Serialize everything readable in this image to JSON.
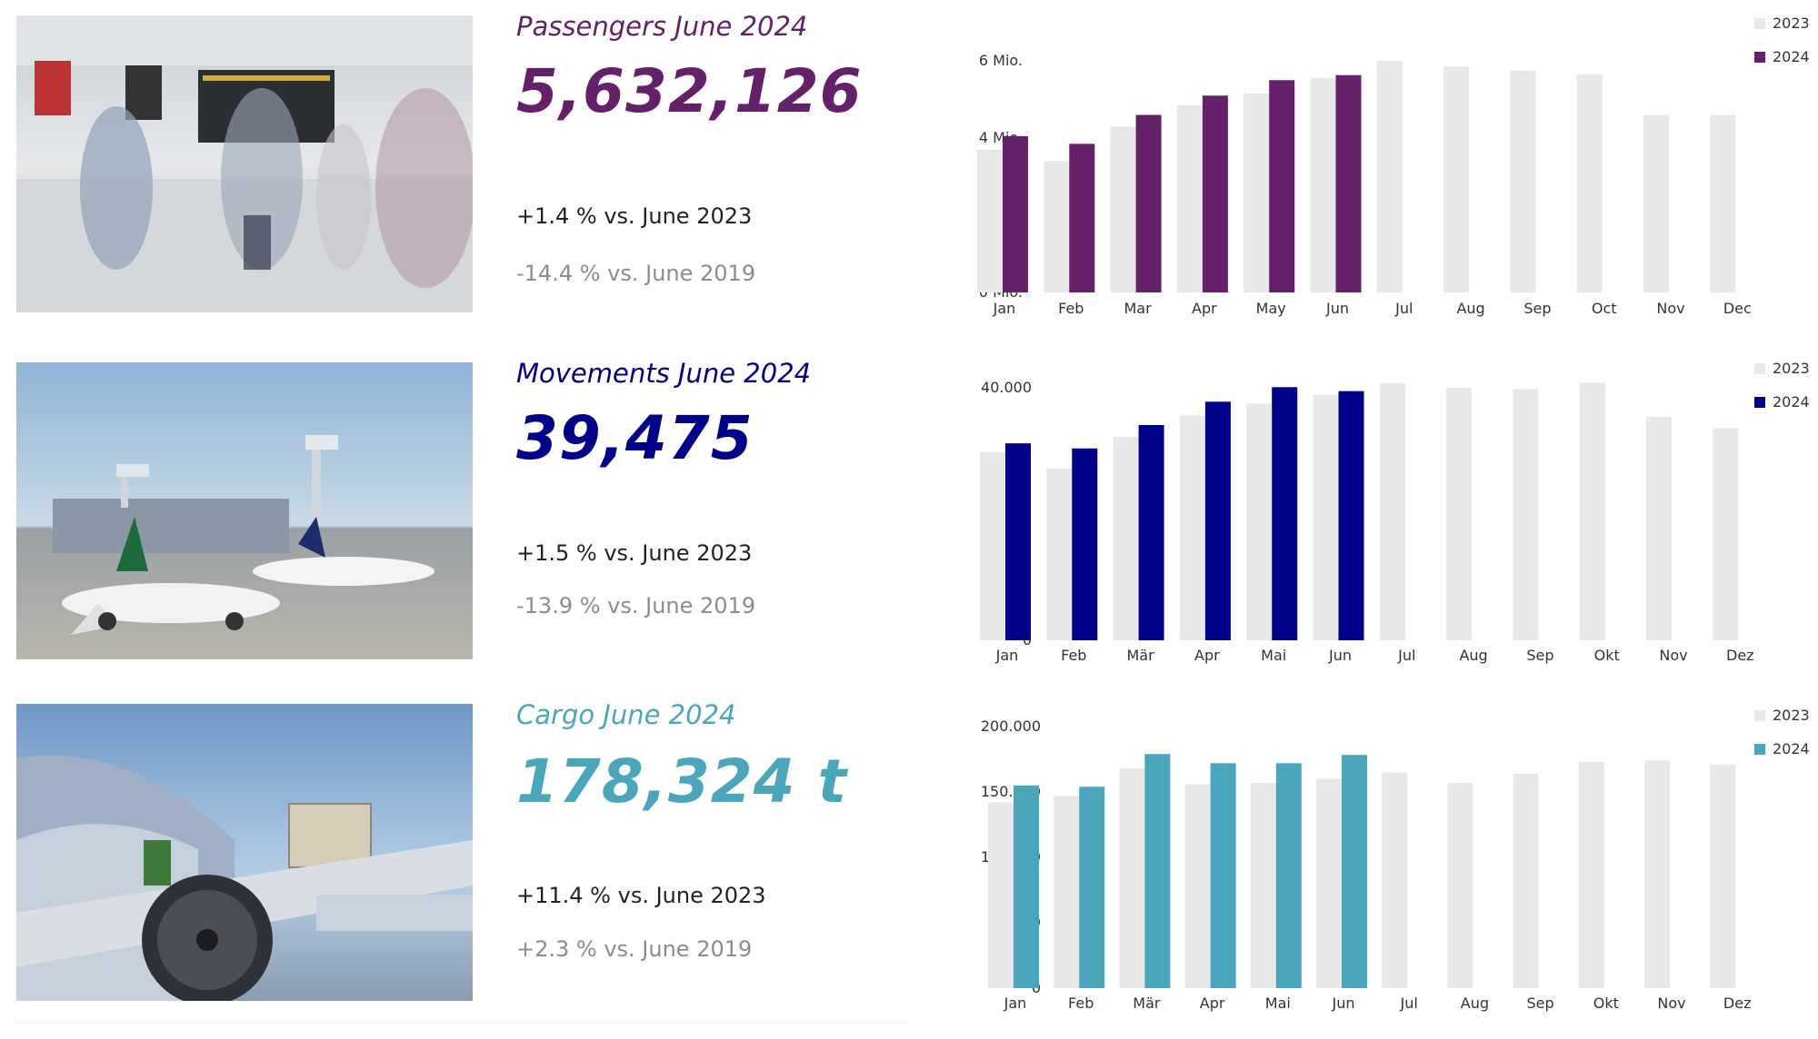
{
  "colors": {
    "passengers": "#65206a",
    "movements": "#00008b",
    "cargo": "#4aa6bb",
    "prior_year": "#e8e8ea",
    "subtle_text": "#8c8c8c"
  },
  "sections": [
    {
      "id": "passengers",
      "title": "Passengers June 2024",
      "value": "5,632,126",
      "vs_prev": "+1.4 % vs. June 2023",
      "vs_2019": "-14.4 % vs. June 2019",
      "photo_icon": "airport-terminal-photo"
    },
    {
      "id": "movements",
      "title": "Movements June 2024",
      "value": "39,475",
      "vs_prev": "+1.5 % vs. June 2023",
      "vs_2019": "-13.9 % vs. June 2019",
      "photo_icon": "airplanes-apron-photo"
    },
    {
      "id": "cargo",
      "title": "Cargo June 2024",
      "value": "178,324 t",
      "vs_prev": "+11.4 % vs. June 2023",
      "vs_2019": "+2.3 % vs. June 2019",
      "photo_icon": "cargo-aircraft-photo"
    }
  ],
  "chart_data": [
    {
      "type": "bar",
      "categories": [
        "Jan",
        "Feb",
        "Mar",
        "Apr",
        "May",
        "Jun",
        "Jul",
        "Aug",
        "Sep",
        "Oct",
        "Nov",
        "Dec"
      ],
      "series": [
        {
          "name": "2023",
          "values": [
            3.7,
            3.4,
            4.3,
            4.85,
            5.15,
            5.55,
            6.0,
            5.85,
            5.75,
            5.65,
            4.6,
            4.6
          ]
        },
        {
          "name": "2024",
          "values": [
            4.05,
            3.85,
            4.6,
            5.1,
            5.5,
            5.63,
            null,
            null,
            null,
            null,
            null,
            null
          ]
        }
      ],
      "yticks": [
        "0 Mio.",
        "2 Mio.",
        "4 Mio.",
        "6 Mio."
      ],
      "ytick_values": [
        0,
        2,
        4,
        6
      ],
      "ylim": [
        0,
        6.6
      ],
      "legend": "top-right"
    },
    {
      "type": "bar",
      "categories": [
        "Jan",
        "Feb",
        "Mär",
        "Apr",
        "Mai",
        "Jun",
        "Jul",
        "Aug",
        "Sep",
        "Okt",
        "Nov",
        "Dez"
      ],
      "series": [
        {
          "name": "2023",
          "values": [
            29800,
            27200,
            32200,
            35600,
            37500,
            38900,
            40700,
            40000,
            39800,
            40800,
            35400,
            33600
          ]
        },
        {
          "name": "2024",
          "values": [
            31200,
            30400,
            34100,
            37800,
            40100,
            39475,
            null,
            null,
            null,
            null,
            null,
            null
          ]
        }
      ],
      "yticks": [
        "0",
        "20.000",
        "40.000"
      ],
      "ytick_values": [
        0,
        20000,
        40000
      ],
      "ylim": [
        0,
        44000
      ],
      "legend": "top-right"
    },
    {
      "type": "bar",
      "categories": [
        "Jan",
        "Feb",
        "Mär",
        "Apr",
        "Mai",
        "Jun",
        "Jul",
        "Aug",
        "Sep",
        "Okt",
        "Nov",
        "Dez"
      ],
      "series": [
        {
          "name": "2023",
          "values": [
            142000,
            147000,
            168000,
            156000,
            157000,
            160000,
            165000,
            157000,
            164000,
            173000,
            174000,
            171000
          ]
        },
        {
          "name": "2024",
          "values": [
            155000,
            154000,
            179000,
            172000,
            172000,
            178324,
            null,
            null,
            null,
            null,
            null,
            null
          ]
        }
      ],
      "yticks": [
        "0",
        "50.000",
        "100.000",
        "150.000",
        "200.000"
      ],
      "ytick_values": [
        0,
        50000,
        100000,
        150000,
        200000
      ],
      "ylim": [
        0,
        200000
      ],
      "legend": "top-right"
    }
  ]
}
